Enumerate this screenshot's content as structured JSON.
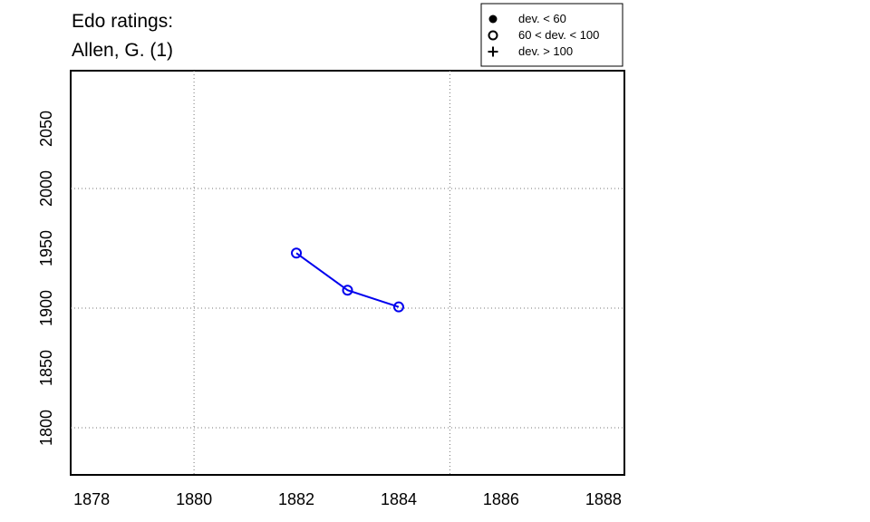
{
  "chart_data": {
    "type": "line",
    "title": "Edo ratings:",
    "subtitle": "Allen, G. (1)",
    "x": [
      1882,
      1883,
      1884
    ],
    "series": [
      {
        "color": "#0000ee",
        "marker": "open-circle",
        "values": [
          1946,
          1915,
          1901
        ]
      }
    ],
    "xlim": [
      1877.59,
      1888.41
    ],
    "ylim": [
      1760.6,
      2098.5
    ],
    "xticks": [
      1878,
      1880,
      1882,
      1884,
      1886,
      1888
    ],
    "yticks": [
      1800,
      1850,
      1900,
      1950,
      2000,
      2050
    ],
    "xgrid": [
      1880,
      1885
    ],
    "ygrid": [
      1800,
      1900,
      2000
    ],
    "legend": [
      {
        "label": "dev. < 60",
        "marker": "filled-circle"
      },
      {
        "label": "60 < dev. < 100",
        "marker": "open-circle"
      },
      {
        "label": "dev. > 100",
        "marker": "plus"
      }
    ]
  }
}
